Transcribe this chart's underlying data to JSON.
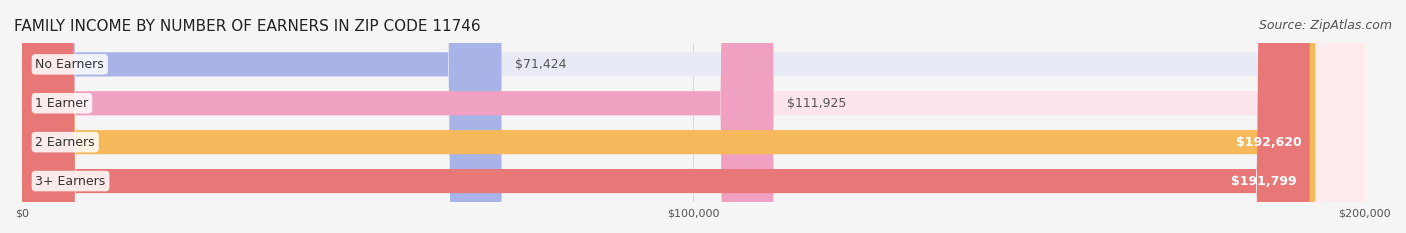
{
  "title": "FAMILY INCOME BY NUMBER OF EARNERS IN ZIP CODE 11746",
  "source": "Source: ZipAtlas.com",
  "categories": [
    "No Earners",
    "1 Earner",
    "2 Earners",
    "3+ Earners"
  ],
  "values": [
    71424,
    111925,
    192620,
    191799
  ],
  "value_labels": [
    "$71,424",
    "$111,925",
    "$192,620",
    "$191,799"
  ],
  "bar_colors": [
    "#a8b4e8",
    "#f0a0c0",
    "#f5b85a",
    "#e87878"
  ],
  "bar_bg_colors": [
    "#e8eaf6",
    "#fce4ec",
    "#fff3e0",
    "#ffebee"
  ],
  "xlim": [
    0,
    200000
  ],
  "xtick_values": [
    0,
    100000,
    200000
  ],
  "xtick_labels": [
    "$0",
    "$100,000",
    "$200,000"
  ],
  "title_fontsize": 11,
  "source_fontsize": 9,
  "label_fontsize": 9,
  "value_fontsize": 9,
  "background_color": "#f5f5f5",
  "bar_bg_color": "#efefef"
}
